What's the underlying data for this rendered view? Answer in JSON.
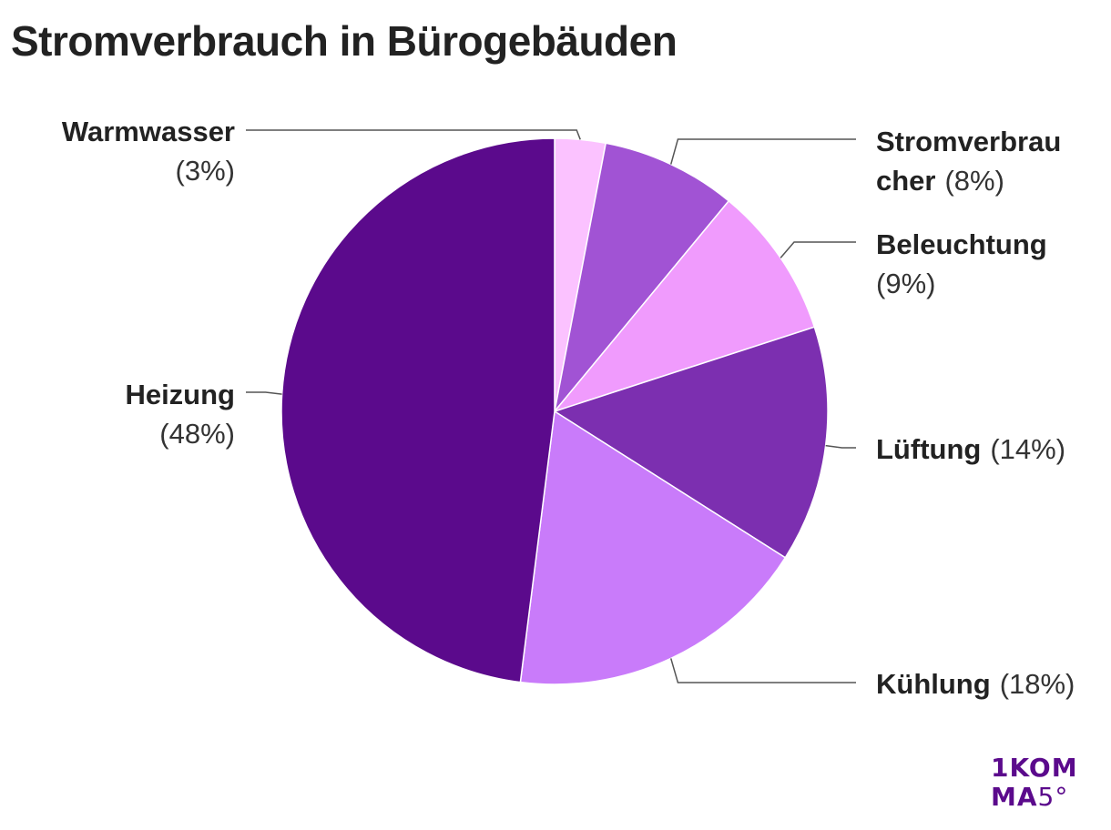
{
  "title": "Stromverbrauch in Bürogebäuden",
  "logo": {
    "line1": "1KOM",
    "line2_letters": "MA",
    "line2_number": "5°"
  },
  "chart_data": {
    "type": "pie",
    "title": "Stromverbrauch in Bürogebäuden",
    "unit": "%",
    "slices": [
      {
        "label": "Warmwasser",
        "value": 3,
        "value_label": "(3%)",
        "color": "#fbc2ff"
      },
      {
        "label": "Stromverbraucher",
        "value": 8,
        "value_label": "(8%)",
        "color": "#a153d4"
      },
      {
        "label": "Beleuchtung",
        "value": 9,
        "value_label": "(9%)",
        "color": "#f09bfd"
      },
      {
        "label": "Lüftung",
        "value": 14,
        "value_label": "(14%)",
        "color": "#7c2fb0"
      },
      {
        "label": "Kühlung",
        "value": 18,
        "value_label": "(18%)",
        "color": "#c97bfa"
      },
      {
        "label": "Heizung",
        "value": 48,
        "value_label": "(48%)",
        "color": "#5b0a8c"
      }
    ]
  }
}
